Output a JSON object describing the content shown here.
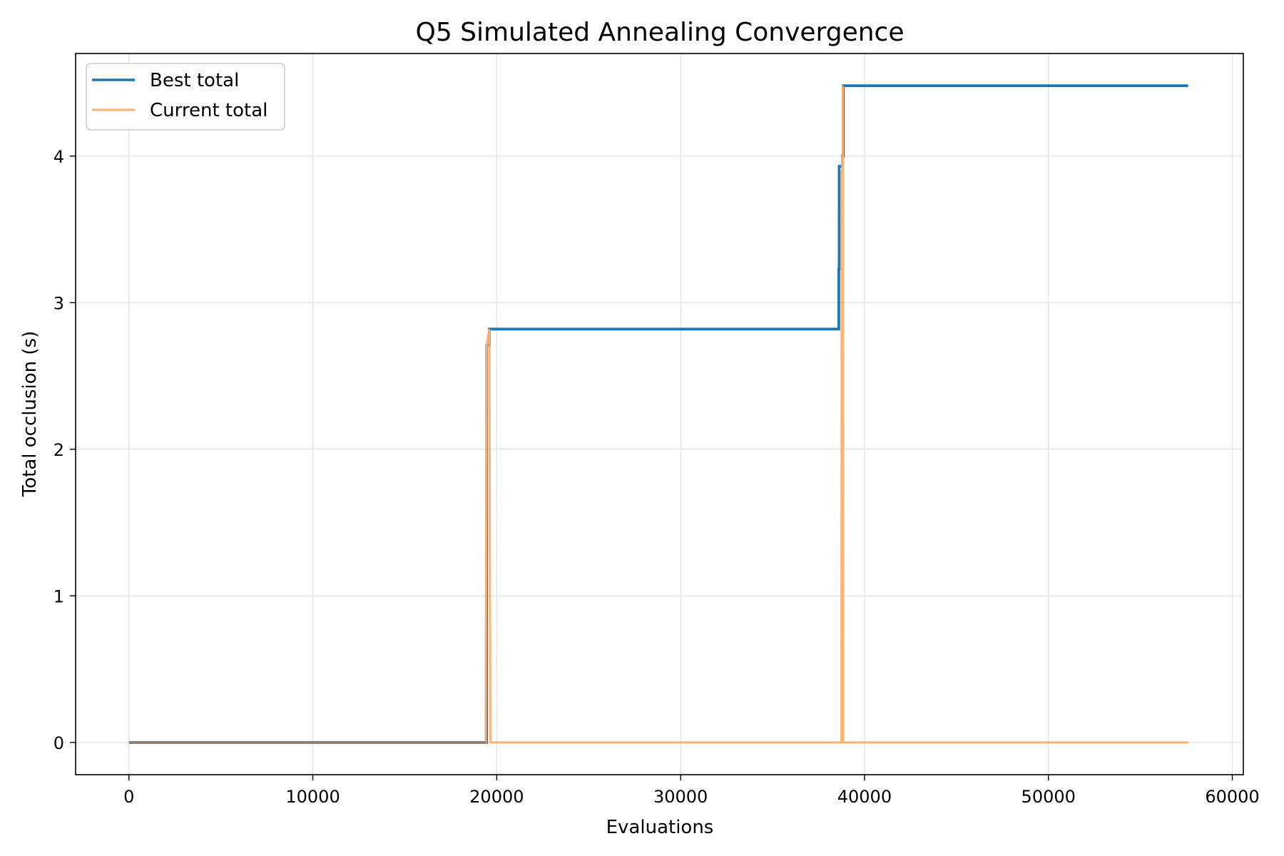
{
  "chart_data": {
    "type": "line",
    "title": "Q5 Simulated Annealing Convergence",
    "xlabel": "Evaluations",
    "ylabel": "Total occlusion (s)",
    "xlim": [
      -2900,
      60600
    ],
    "ylim": [
      -0.22,
      4.7
    ],
    "xticks": [
      0,
      10000,
      20000,
      30000,
      40000,
      50000,
      60000
    ],
    "yticks": [
      0,
      1,
      2,
      3,
      4
    ],
    "grid": true,
    "legend_position": "top-left",
    "series": [
      {
        "name": "Best total",
        "color": "#1f77b4",
        "x": [
          0,
          19450,
          19450,
          19600,
          19600,
          38600,
          38600,
          38620,
          38620,
          38800,
          38800,
          38850,
          38850,
          57600
        ],
        "y": [
          0,
          0,
          2.71,
          2.71,
          2.82,
          2.82,
          3.23,
          3.23,
          3.93,
          3.93,
          4.0,
          4.0,
          4.48,
          4.48
        ]
      },
      {
        "name": "Current total",
        "color": "#ffaf6e",
        "x": [
          0,
          19400,
          19450,
          19600,
          19650,
          38750,
          38760,
          38780,
          38790,
          38810,
          38820,
          38840,
          38860,
          57600
        ],
        "y": [
          0,
          0,
          2.71,
          2.82,
          0,
          0,
          3.9,
          0,
          4.0,
          0,
          4.48,
          0,
          0,
          0
        ]
      }
    ]
  }
}
